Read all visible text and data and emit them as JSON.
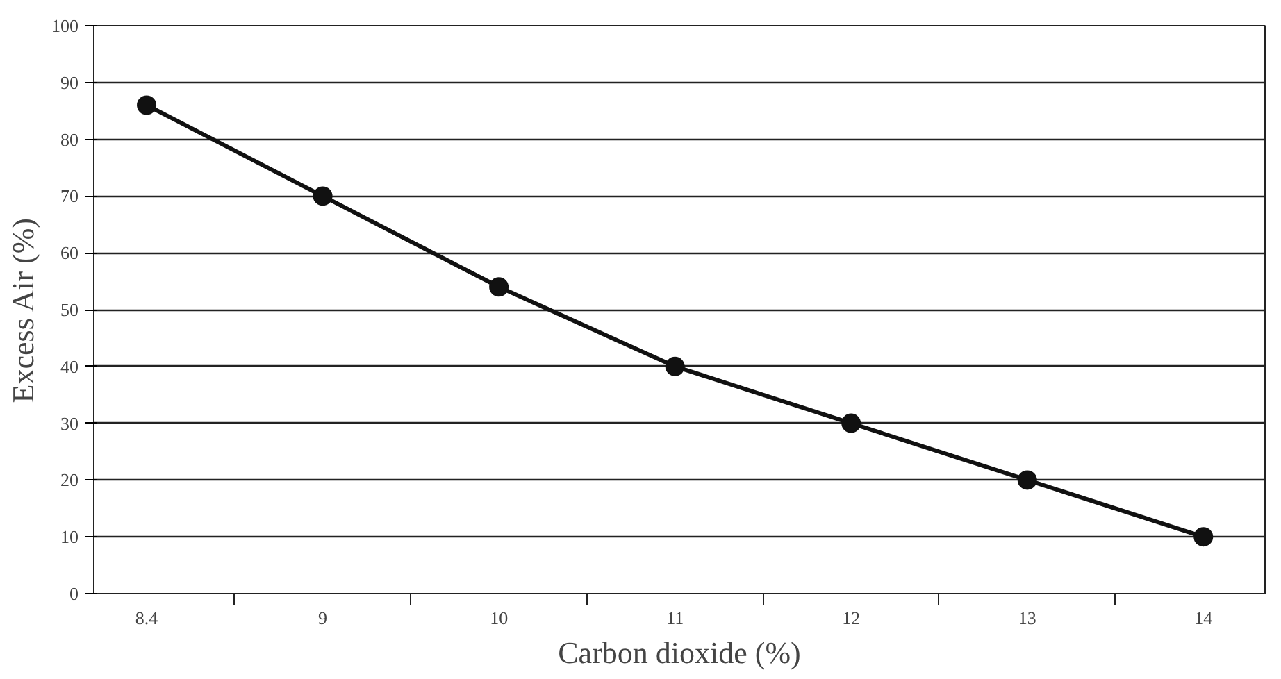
{
  "chart_data": {
    "type": "line",
    "xlabel": "Carbon dioxide (%)",
    "ylabel": "Excess Air (%)",
    "categories": [
      "8.4",
      "9",
      "10",
      "11",
      "12",
      "13",
      "14"
    ],
    "series": [
      {
        "color": "#111111",
        "values": [
          86,
          70,
          54,
          40,
          30,
          20,
          10
        ]
      }
    ],
    "ylim": [
      0,
      100
    ],
    "yticks": [
      0,
      10,
      20,
      30,
      40,
      50,
      60,
      70,
      80,
      90,
      100
    ],
    "grid": "y",
    "marker": "circle",
    "line_style": "solid"
  }
}
